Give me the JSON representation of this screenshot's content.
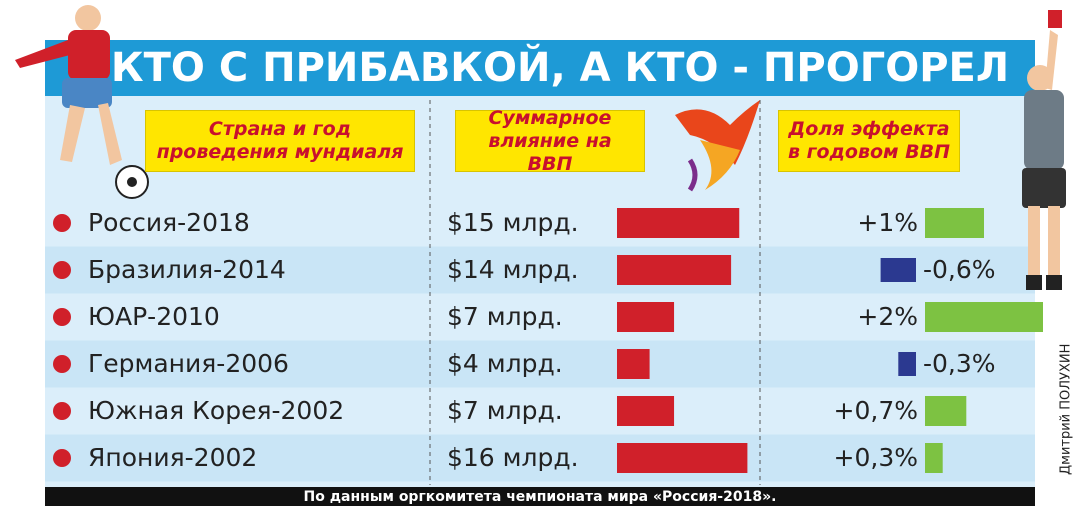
{
  "chart_data": {
    "type": "table-bar",
    "title": "КТО С ПРИБАВКОЙ, А КТО - ПРОГОРЕЛ",
    "category_header": "Страна и год проведения мундиаля",
    "categories": [
      "Россия-2018",
      "Бразилия-2014",
      "ЮАР-2010",
      "Германия-2006",
      "Южная Корея-2002",
      "Япония-2002"
    ],
    "series": [
      {
        "name": "Суммарное влияние на ВВП",
        "color": "#d0202a",
        "values": [
          15,
          14,
          7,
          4,
          7,
          16
        ],
        "value_labels": [
          "$15 млрд.",
          "$14 млрд.",
          "$7 млрд.",
          "$4 млрд.",
          "$7 млрд.",
          "$16 млрд."
        ]
      },
      {
        "name": "Доля эффекта в годовом ВВП",
        "color": "#7dc242",
        "negative_color": "#2b3990",
        "values": [
          1,
          -0.6,
          2,
          -0.3,
          0.7,
          0.3
        ],
        "value_labels": [
          "+1%",
          "-0,6%",
          "+2%",
          "-0,3%",
          "+0,7%",
          "+0,3%"
        ]
      }
    ],
    "source": "По данным оргкомитета чемпионата мира «Россия-2018».",
    "credit": "Дмитрий ПОЛУХИН"
  }
}
